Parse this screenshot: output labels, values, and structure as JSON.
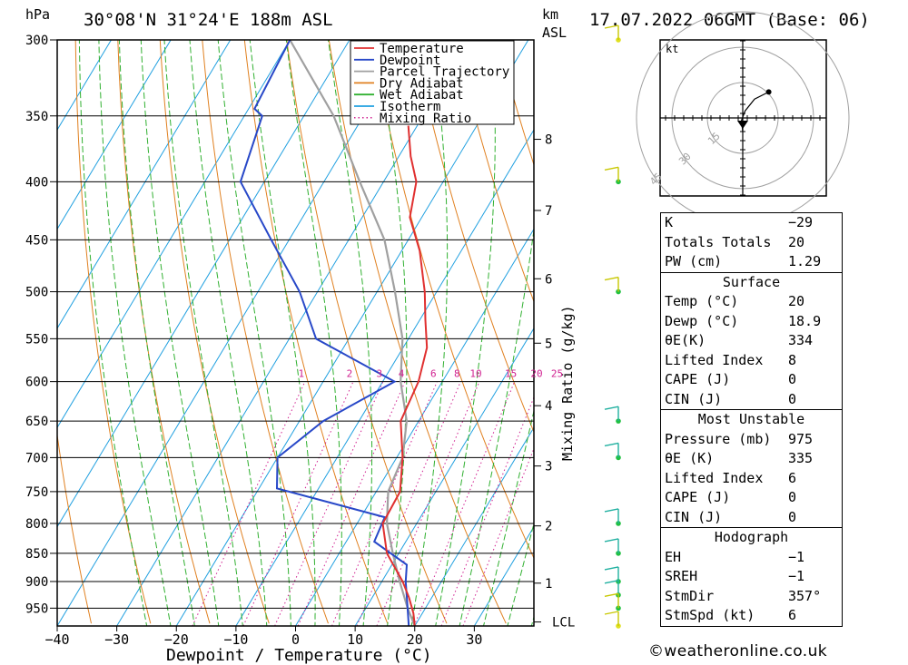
{
  "header": {
    "pressure_unit": "hPa",
    "location": "30°08'N  31°24'E  188m  ASL",
    "height_unit_line1": "km",
    "height_unit_line2": "ASL",
    "datetime": "17.07.2022  06GMT  (Base: 06)"
  },
  "footer": {
    "credit": "©weatheronline.co.uk"
  },
  "chart_data": {
    "type": "line",
    "title": "30°08'N  31°24'E  188m  ASL",
    "xlabel": "Dewpoint / Temperature (°C)",
    "ylabel": "hPa",
    "secondary_ylabel": "Mixing Ratio (g/kg)",
    "xlim": [
      -40,
      40
    ],
    "x_ticks": [
      "−40",
      "−30",
      "−20",
      "−10",
      "0",
      "10",
      "20",
      "30"
    ],
    "x_tick_values": [
      -40,
      -30,
      -20,
      -10,
      0,
      10,
      20,
      30
    ],
    "pressure_levels": [
      300,
      350,
      400,
      450,
      500,
      550,
      600,
      650,
      700,
      750,
      800,
      850,
      900,
      950
    ],
    "pressure_range": [
      300,
      985
    ],
    "height_km_ticks": [
      "8",
      "7",
      "6",
      "5",
      "4",
      "3",
      "2",
      "1"
    ],
    "height_km_values": [
      8,
      7,
      6,
      5,
      4,
      3,
      2,
      1
    ],
    "height_km_pressures": [
      367,
      424,
      487,
      555,
      630,
      712,
      804,
      903
    ],
    "lcl": {
      "label": "LCL",
      "pressure": 977
    },
    "mixing_ratio_labels": [
      "1",
      "2",
      "3",
      "4",
      "6",
      "8",
      "10",
      "15",
      "20",
      "25"
    ],
    "legend": {
      "position": "top-right",
      "entries": [
        {
          "name": "Temperature",
          "color": "#e03030",
          "style": "solid"
        },
        {
          "name": "Dewpoint",
          "color": "#2848c8",
          "style": "solid"
        },
        {
          "name": "Parcel Trajectory",
          "color": "#a0a0a0",
          "style": "solid"
        },
        {
          "name": "Dry Adiabat",
          "color": "#e08020",
          "style": "solid"
        },
        {
          "name": "Wet Adiabat",
          "color": "#30b030",
          "style": "solid"
        },
        {
          "name": "Isotherm",
          "color": "#20a0e0",
          "style": "solid"
        },
        {
          "name": "Mixing Ratio",
          "color": "#d02090",
          "style": "dotted"
        }
      ]
    },
    "series": [
      {
        "name": "Temperature",
        "color": "#e03030",
        "points": [
          [
            357,
            -31.5
          ],
          [
            380,
            -28
          ],
          [
            400,
            -24.5
          ],
          [
            430,
            -22
          ],
          [
            460,
            -17
          ],
          [
            500,
            -12
          ],
          [
            530,
            -9
          ],
          [
            560,
            -6
          ],
          [
            600,
            -4
          ],
          [
            650,
            -3
          ],
          [
            700,
            1
          ],
          [
            750,
            4
          ],
          [
            800,
            4.3
          ],
          [
            850,
            8
          ],
          [
            900,
            13.5
          ],
          [
            930,
            16.2
          ],
          [
            960,
            18.5
          ],
          [
            985,
            20
          ]
        ]
      },
      {
        "name": "Dewpoint",
        "color": "#2848c8",
        "points": [
          [
            300,
            -60
          ],
          [
            345,
            -59
          ],
          [
            350,
            -57
          ],
          [
            400,
            -54
          ],
          [
            450,
            -43
          ],
          [
            500,
            -33
          ],
          [
            550,
            -25.5
          ],
          [
            600,
            -8
          ],
          [
            650,
            -16
          ],
          [
            700,
            -20
          ],
          [
            745,
            -17
          ],
          [
            790,
            4
          ],
          [
            830,
            4.7
          ],
          [
            870,
            12.5
          ],
          [
            900,
            14
          ],
          [
            950,
            17
          ],
          [
            985,
            19
          ]
        ]
      },
      {
        "name": "Parcel Trajectory",
        "color": "#a0a0a0",
        "points": [
          [
            300,
            -60
          ],
          [
            350,
            -45
          ],
          [
            400,
            -34
          ],
          [
            450,
            -24
          ],
          [
            500,
            -17
          ],
          [
            550,
            -11
          ],
          [
            600,
            -7
          ],
          [
            650,
            -2
          ],
          [
            700,
            1
          ],
          [
            750,
            2
          ],
          [
            800,
            5
          ],
          [
            850,
            9
          ],
          [
            900,
            13
          ],
          [
            950,
            17
          ],
          [
            985,
            20
          ]
        ]
      }
    ],
    "hodograph": {
      "unit_label": "kt",
      "rings": [
        "15",
        "30",
        "45"
      ],
      "ring_values": [
        15,
        30,
        45
      ],
      "trace_uv": [
        [
          0,
          -6
        ],
        [
          -0.5,
          -1
        ],
        [
          1,
          3
        ],
        [
          5,
          8
        ],
        [
          11,
          11
        ]
      ]
    },
    "wind_barb_pressures": [
      300,
      400,
      500,
      650,
      700,
      800,
      850,
      900,
      925,
      950,
      985
    ]
  },
  "indices": {
    "rows": [
      {
        "label": "K",
        "value": "−29"
      },
      {
        "label": "Totals Totals",
        "value": "20"
      },
      {
        "label": "PW (cm)",
        "value": "1.29"
      }
    ]
  },
  "surface": {
    "title": "Surface",
    "rows": [
      {
        "label": "Temp (°C)",
        "value": "20"
      },
      {
        "label": "Dewp (°C)",
        "value": "18.9"
      },
      {
        "label": "θE(K)",
        "value": "334"
      },
      {
        "label": "Lifted Index",
        "value": "8"
      },
      {
        "label": "CAPE (J)",
        "value": "0"
      },
      {
        "label": "CIN (J)",
        "value": "0"
      }
    ]
  },
  "most_unstable": {
    "title": "Most Unstable",
    "rows": [
      {
        "label": "Pressure (mb)",
        "value": "975"
      },
      {
        "label": "θE (K)",
        "value": "335"
      },
      {
        "label": "Lifted Index",
        "value": "6"
      },
      {
        "label": "CAPE (J)",
        "value": "0"
      },
      {
        "label": "CIN (J)",
        "value": "0"
      }
    ]
  },
  "hodograph_box": {
    "title": "Hodograph",
    "rows": [
      {
        "label": "EH",
        "value": "−1"
      },
      {
        "label": "SREH",
        "value": "−1"
      },
      {
        "label": "StmDir",
        "value": "357°"
      },
      {
        "label": "StmSpd (kt)",
        "value": "6"
      }
    ]
  }
}
